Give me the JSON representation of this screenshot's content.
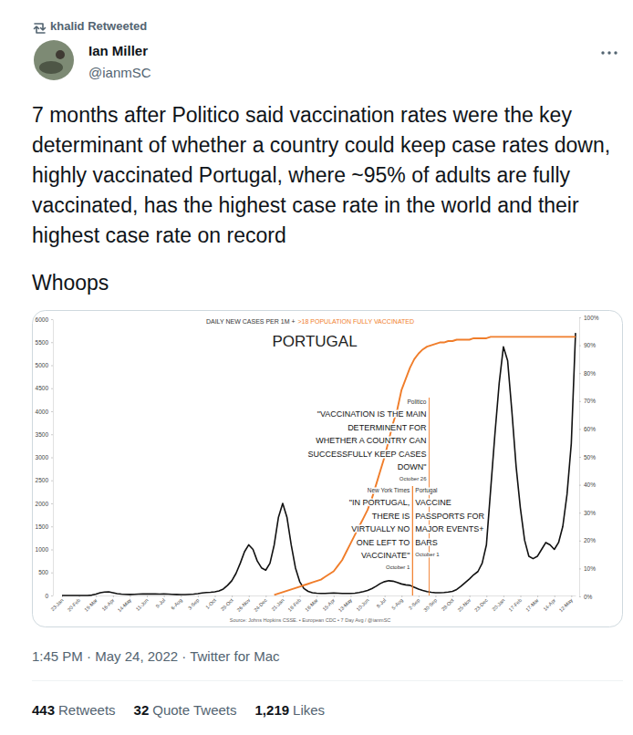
{
  "tweet": {
    "retweeted_by": "khalid Retweeted",
    "author": "Ian Miller",
    "handle": "@ianmSC",
    "text": [
      "7 months after Politico said vaccination rates were the key determinant of whether a country could keep case rates down, highly vaccinated Portugal, where ~95% of adults are fully vaccinated, has the highest case rate in the world and their highest case rate on record",
      "Whoops"
    ],
    "timestamp": "1:45 PM · May 24, 2022 · Twitter for Mac",
    "stats": [
      {
        "count": "443",
        "label": "Retweets"
      },
      {
        "count": "32",
        "label": "Quote Tweets"
      },
      {
        "count": "1,219",
        "label": "Likes"
      }
    ]
  },
  "chart_data": {
    "type": "line",
    "title": "PORTUGAL",
    "legend": "top",
    "grid": false,
    "categories": [
      "23-Jan",
      null,
      null,
      null,
      "20-Feb",
      null,
      null,
      null,
      "19-Mar",
      null,
      null,
      null,
      "16-Apr",
      null,
      null,
      null,
      "14-May",
      null,
      null,
      null,
      "11-Jun",
      null,
      null,
      null,
      "9-Jul",
      null,
      null,
      null,
      "6-Aug",
      null,
      null,
      null,
      "3-Sep",
      null,
      null,
      null,
      "1-Oct",
      null,
      null,
      null,
      "29-Oct",
      null,
      null,
      null,
      "26-Nov",
      null,
      null,
      null,
      "24-Dec",
      null,
      null,
      null,
      "21-Jan",
      null,
      null,
      null,
      "18-Feb",
      null,
      null,
      null,
      "18-Mar",
      null,
      null,
      null,
      "15-Apr",
      null,
      null,
      null,
      "13-May",
      null,
      null,
      null,
      "10-Jun",
      null,
      null,
      null,
      "8-Jul",
      null,
      null,
      null,
      "5-Aug",
      null,
      null,
      null,
      "2-Sep",
      null,
      null,
      null,
      "30-Sep",
      null,
      null,
      null,
      "28-Oct",
      null,
      null,
      null,
      "25-Nov",
      null,
      null,
      null,
      "23-Dec",
      null,
      null,
      null,
      "20-Jan",
      null,
      null,
      null,
      "17-Feb",
      null,
      null,
      null,
      "17-Mar",
      null,
      null,
      null,
      "14-Apr",
      null,
      null,
      null,
      "12-May",
      null
    ],
    "series": [
      {
        "name": "DAILY NEW CASES PER 1M +",
        "color": "#111111",
        "values": [
          0,
          0,
          0,
          0,
          0,
          0,
          1,
          8,
          30,
          60,
          75,
          80,
          60,
          40,
          30,
          25,
          22,
          25,
          30,
          32,
          33,
          35,
          32,
          30,
          32,
          30,
          25,
          22,
          20,
          20,
          25,
          30,
          40,
          55,
          65,
          70,
          80,
          100,
          140,
          220,
          320,
          480,
          700,
          950,
          1100,
          1000,
          750,
          600,
          550,
          700,
          1100,
          1700,
          2000,
          1700,
          1100,
          600,
          300,
          150,
          90,
          60,
          50,
          45,
          45,
          50,
          55,
          50,
          45,
          45,
          45,
          50,
          65,
          85,
          110,
          150,
          200,
          260,
          300,
          320,
          310,
          280,
          250,
          230,
          220,
          180,
          140,
          110,
          85,
          70,
          60,
          60,
          65,
          75,
          90,
          130,
          200,
          280,
          360,
          450,
          520,
          700,
          1100,
          2300,
          3500,
          4600,
          5400,
          5100,
          4000,
          2800,
          1900,
          1200,
          850,
          800,
          850,
          1000,
          1150,
          1100,
          1000,
          1150,
          1500,
          2200,
          3300,
          5700
        ]
      },
      {
        "name": ">18 POPULATION FULLY VACCINATED",
        "color": "#f07d2a",
        "axis": "y2",
        "values": [
          null,
          null,
          null,
          null,
          null,
          null,
          null,
          null,
          null,
          null,
          null,
          null,
          null,
          null,
          null,
          null,
          null,
          null,
          null,
          null,
          null,
          null,
          null,
          null,
          null,
          null,
          null,
          null,
          null,
          null,
          null,
          null,
          null,
          null,
          null,
          null,
          null,
          null,
          null,
          null,
          null,
          null,
          null,
          null,
          null,
          null,
          null,
          null,
          null,
          null,
          0.5,
          1,
          1.5,
          2,
          2.5,
          3,
          3.5,
          4,
          4.5,
          5,
          5.5,
          6,
          7,
          8,
          9,
          11,
          13,
          16,
          19,
          22,
          25,
          28,
          31,
          35,
          40,
          45,
          50,
          56,
          62,
          67,
          74,
          78,
          82,
          85,
          87,
          88.5,
          89.5,
          90,
          90.5,
          91,
          91,
          91.5,
          91.5,
          92,
          92,
          92,
          92,
          92.5,
          92.5,
          92.5,
          92.5,
          93,
          93,
          93,
          93,
          93,
          93,
          93,
          93,
          93,
          93,
          93,
          93,
          93,
          93,
          93,
          93,
          93,
          93,
          93,
          93,
          93
        ]
      }
    ],
    "ylim": [
      0,
      6000
    ],
    "yticks": [
      0,
      500,
      1000,
      1500,
      2000,
      2500,
      3000,
      3500,
      4000,
      4500,
      5000,
      5500,
      6000
    ],
    "y2lim": [
      0,
      100
    ],
    "y2ticks": [
      {
        "value": 0,
        "label": "0%"
      },
      {
        "value": 10,
        "label": "10%"
      },
      {
        "value": 20,
        "label": "20%"
      },
      {
        "value": 30,
        "label": "30%"
      },
      {
        "value": 40,
        "label": "40%"
      },
      {
        "value": 50,
        "label": "50%"
      },
      {
        "value": 60,
        "label": "60%"
      },
      {
        "value": 70,
        "label": "70%"
      },
      {
        "value": 80,
        "label": "80%"
      },
      {
        "value": 90,
        "label": "90%"
      },
      {
        "value": 100,
        "label": "100%"
      }
    ],
    "annotations": [
      {
        "source": "Politico",
        "lines": [
          "\"VACCINATION IS THE MAIN",
          "DETERMINENT FOR",
          "WHETHER A COUNTRY CAN",
          "SUCCESSFULLY KEEP CASES",
          "DOWN\""
        ],
        "date": "October 26",
        "x": 86.5
      },
      {
        "source": "New York Times",
        "lines": [
          "\"IN PORTUGAL,",
          "THERE IS",
          "VIRTUALLY NO",
          "ONE LEFT TO",
          "VACCINATE\""
        ],
        "date": "October 1",
        "x": 82.6
      },
      {
        "source": "Portugal",
        "lines": [
          "VACCINE",
          "PASSPORTS FOR",
          "MAJOR EVENTS+",
          "BARS"
        ],
        "date": "October 1",
        "x": 82.6
      }
    ],
    "source": "Source: Johns Hopkins CSSE. • European CDC • 7 Day Avg / @ianmSC"
  }
}
